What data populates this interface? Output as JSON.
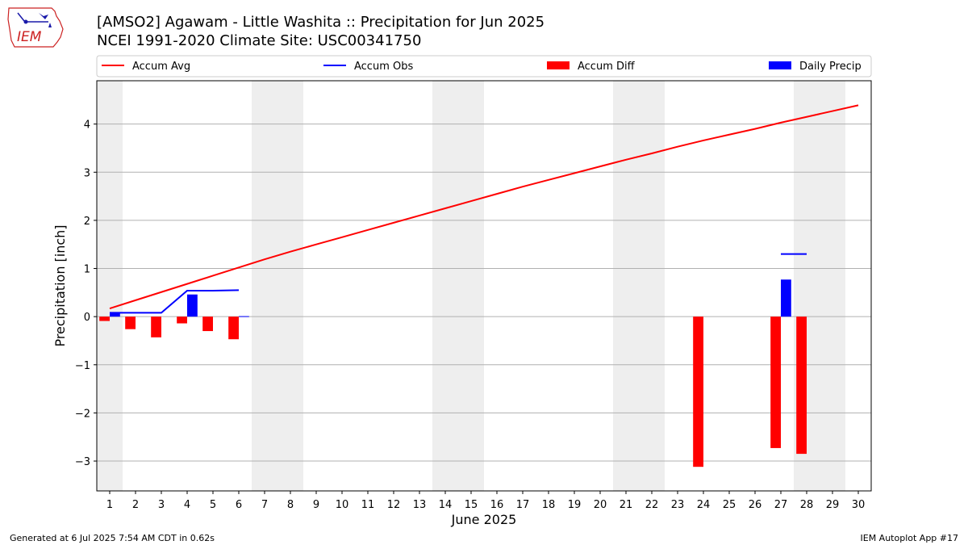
{
  "logo": {
    "text": "IEM"
  },
  "title": {
    "line1": "[AMSO2] Agawam - Little Washita :: Precipitation for Jun 2025",
    "line2": "NCEI 1991-2020 Climate Site: USC00341750"
  },
  "footer": {
    "left": "Generated at 6 Jul 2025 7:54 AM CDT in 0.62s",
    "right": "IEM Autoplot App #17"
  },
  "chart_data": {
    "type": "bar",
    "xlabel": "June 2025",
    "ylabel": "Precipitation [inch]",
    "xlim": [
      0.5,
      30.5
    ],
    "ylim": [
      -3.62,
      4.9
    ],
    "yticks": [
      4,
      3,
      2,
      1,
      0,
      -1,
      -2,
      -3
    ],
    "xticks": [
      1,
      2,
      3,
      4,
      5,
      6,
      7,
      8,
      9,
      10,
      11,
      12,
      13,
      14,
      15,
      16,
      17,
      18,
      19,
      20,
      21,
      22,
      23,
      24,
      25,
      26,
      27,
      28,
      29,
      30
    ],
    "grid": "horizontal",
    "weekend_shading": [
      [
        0.5,
        1.5
      ],
      [
        6.5,
        8.5
      ],
      [
        13.5,
        15.5
      ],
      [
        20.5,
        22.5
      ],
      [
        27.5,
        29.5
      ]
    ],
    "legend_position": "top",
    "colors": {
      "accum_avg": "#ff0000",
      "accum_obs": "#0000ff",
      "accum_diff": "#ff0000",
      "daily_precip": "#0000ff",
      "weekend": "#eeeeee",
      "grid": "#b0b0b0"
    },
    "series": [
      {
        "name": "Accum Avg",
        "kind": "line",
        "x": [
          1,
          2,
          3,
          4,
          5,
          6,
          7,
          8,
          9,
          10,
          11,
          12,
          13,
          14,
          15,
          16,
          17,
          18,
          19,
          20,
          21,
          22,
          23,
          24,
          25,
          26,
          27,
          28,
          29,
          30
        ],
        "values": [
          0.17,
          0.34,
          0.51,
          0.68,
          0.85,
          1.02,
          1.19,
          1.35,
          1.5,
          1.65,
          1.8,
          1.95,
          2.1,
          2.25,
          2.4,
          2.55,
          2.7,
          2.84,
          2.98,
          3.12,
          3.26,
          3.39,
          3.53,
          3.66,
          3.78,
          3.9,
          4.03,
          4.15,
          4.27,
          4.39
        ]
      },
      {
        "name": "Accum Obs",
        "kind": "line",
        "segments": [
          {
            "x": [
              1,
              2,
              3,
              4,
              5,
              6
            ],
            "values": [
              0.08,
              0.08,
              0.08,
              0.54,
              0.54,
              0.55
            ]
          },
          {
            "x": [
              27,
              28
            ],
            "values": [
              1.3,
              1.3
            ]
          }
        ]
      },
      {
        "name": "Accum Diff",
        "kind": "bar",
        "x": [
          1,
          2,
          3,
          4,
          5,
          6,
          24,
          27,
          28
        ],
        "values": [
          -0.09,
          -0.26,
          -0.43,
          -0.14,
          -0.3,
          -0.47,
          -3.12,
          -2.73,
          -2.85
        ]
      },
      {
        "name": "Daily Precip",
        "kind": "bar",
        "x": [
          1,
          4,
          6,
          27
        ],
        "values": [
          0.08,
          0.46,
          0.01,
          0.77
        ]
      }
    ]
  }
}
